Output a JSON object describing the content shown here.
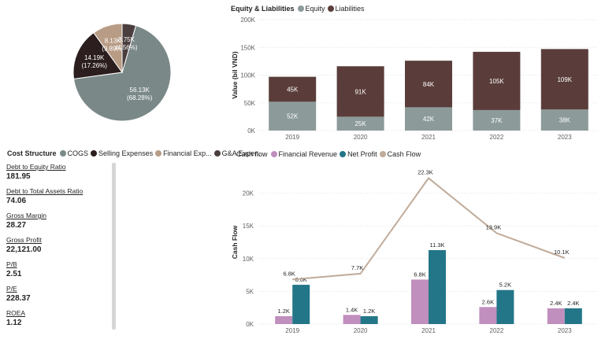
{
  "colors": {
    "cogs": "#7b8888",
    "selling": "#2c1e1e",
    "financial_exp": "#b89c86",
    "ga_exp": "#4a3f3e",
    "equity": "#8c9a9a",
    "liabilities": "#5a3d3a",
    "financial_revenue": "#c08fbe",
    "net_profit": "#237688",
    "cash_flow": "#c0ab9a",
    "grid": "#e3e3e3",
    "axis_text": "#605e5c"
  },
  "kpis": [
    {
      "label": "Debt to Equity Ratio",
      "value": "181.95"
    },
    {
      "label": "Debt to Total Assets Ratio",
      "value": "74.06"
    },
    {
      "label": "Gross Margin",
      "value": "28.27"
    },
    {
      "label": "Gross Profit",
      "value": "22,121.00"
    },
    {
      "label": "P/B",
      "value": "2.51"
    },
    {
      "label": "P/E",
      "value": "228.37"
    },
    {
      "label": "ROEA",
      "value": "1.12"
    }
  ],
  "chart_data": [
    {
      "type": "pie",
      "legend_title": "Cost Structure",
      "slices": [
        {
          "name": "COGS",
          "value": 56.13,
          "label": "56.13K",
          "pct": "(68.28%)"
        },
        {
          "name": "Selling Expenses",
          "value": 14.19,
          "label": "14.19K",
          "pct": "(17.26%)"
        },
        {
          "name": "Financial Exp...",
          "value": 8.13,
          "label": "8.13K",
          "pct": "(9.89%)"
        },
        {
          "name": "G&A Expen...",
          "value": 3.75,
          "label": "3.75K",
          "pct": "(4.56%)"
        }
      ]
    },
    {
      "type": "bar",
      "stacked": true,
      "title": "Equity & Liabilities",
      "ylabel": "Value (bil VND)",
      "ylim": [
        0,
        200000
      ],
      "yticks": [
        "0K",
        "50K",
        "100K",
        "150K",
        "200K"
      ],
      "categories": [
        "2019",
        "2020",
        "2021",
        "2022",
        "2023"
      ],
      "series": [
        {
          "name": "Equity",
          "values": [
            52000,
            25000,
            42000,
            37000,
            38000
          ],
          "labels": [
            "52K",
            "25K",
            "42K",
            "37K",
            "38K"
          ]
        },
        {
          "name": "Liabilities",
          "values": [
            45000,
            91000,
            84000,
            105000,
            109000
          ],
          "labels": [
            "45K",
            "91K",
            "84K",
            "105K",
            "109K"
          ]
        }
      ]
    },
    {
      "type": "bar",
      "title": "Cash flow",
      "ylabel": "Cash Flow",
      "ylim": [
        0,
        25000
      ],
      "yticks": [
        "0K",
        "5K",
        "10K",
        "15K",
        "20K"
      ],
      "categories": [
        "2019",
        "2020",
        "2021",
        "2022",
        "2023"
      ],
      "series": [
        {
          "name": "Financial Revenue",
          "type": "bar",
          "values": [
            1200,
            1400,
            6800,
            2600,
            2400
          ],
          "labels": [
            "1.2K",
            "1.4K",
            "6.8K",
            "2.6K",
            "2.4K"
          ]
        },
        {
          "name": "Net Profit",
          "type": "bar",
          "values": [
            6000,
            1200,
            11300,
            5200,
            2400
          ],
          "labels": [
            "6.0K",
            "1.2K",
            "11.3K",
            "5.2K",
            "2.4K"
          ]
        },
        {
          "name": "Cash Flow",
          "type": "line",
          "values": [
            6800,
            7700,
            22300,
            13900,
            10100
          ],
          "labels": [
            "6.8K",
            "7.7K",
            "22.3K",
            "13.9K",
            "10.1K"
          ]
        }
      ]
    }
  ]
}
